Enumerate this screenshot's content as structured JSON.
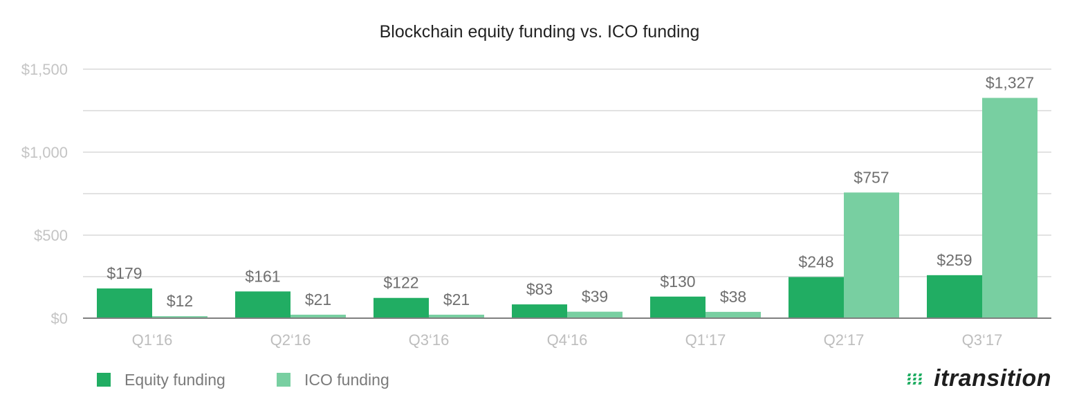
{
  "chart_data": {
    "type": "bar",
    "title": "Blockchain equity funding vs. ICO funding",
    "categories": [
      "Q1‘16",
      "Q2‘16",
      "Q3‘16",
      "Q4‘16",
      "Q1‘17",
      "Q2‘17",
      "Q3‘17"
    ],
    "series": [
      {
        "name": "Equity funding",
        "color": "#21ad63",
        "values": [
          179,
          161,
          122,
          83,
          130,
          248,
          259
        ],
        "labels": [
          "$179",
          "$161",
          "$122",
          "$83",
          "$130",
          "$248",
          "$259"
        ]
      },
      {
        "name": "ICO funding",
        "color": "#78cfa1",
        "values": [
          12,
          21,
          21,
          39,
          38,
          757,
          1327
        ],
        "labels": [
          "$12",
          "$21",
          "$21",
          "$39",
          "$38",
          "$757",
          "$1,327"
        ]
      }
    ],
    "ylim": [
      0,
      1500
    ],
    "yticks": [
      0,
      500,
      1000,
      1500
    ],
    "ytick_labels": [
      "$0",
      "$500",
      "$1,000",
      "$1,500"
    ],
    "grid": true,
    "legend": "bottom-left"
  },
  "branding": {
    "logo_text": "itransition"
  }
}
